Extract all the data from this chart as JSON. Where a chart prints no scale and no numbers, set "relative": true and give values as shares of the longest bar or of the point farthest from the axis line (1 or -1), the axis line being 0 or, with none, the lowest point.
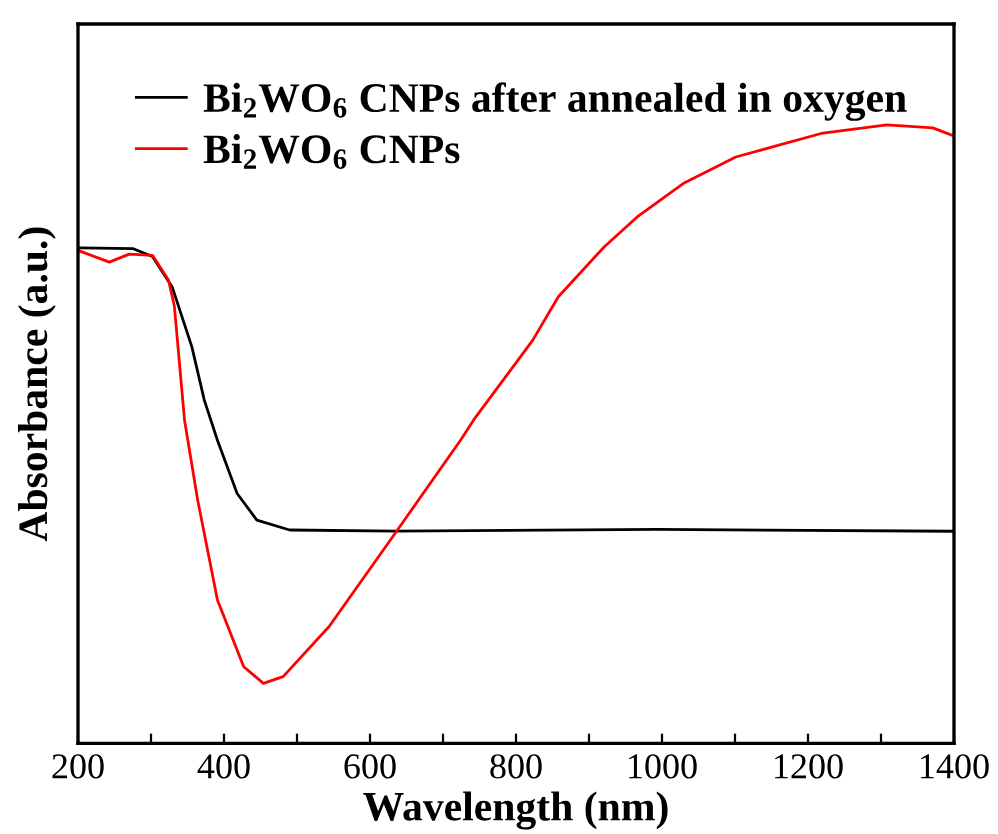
{
  "chart_data": {
    "type": "line",
    "relative": true,
    "xlabel": "Wavelength (nm)",
    "ylabel": "Absorbance (a.u.)",
    "xlim": [
      200,
      1400
    ],
    "xticks": [
      200,
      {
        "value": 300,
        "label": null
      },
      400,
      {
        "value": 500,
        "label": null
      },
      600,
      {
        "value": 700,
        "label": null
      },
      800,
      {
        "value": 900,
        "label": null
      },
      1000,
      {
        "value": 1100,
        "label": null
      },
      1200,
      {
        "value": 1300,
        "label": null
      },
      1400
    ],
    "legend": "top left",
    "grid": false,
    "tick_labels": "x",
    "line_style": "solid",
    "marker": "none",
    "series": [
      {
        "name": "Bi$_{2}$WO$_{6}$ CNPs after annealed in oxygen",
        "color": "#000000",
        "x": [
          203,
          275,
          302,
          329,
          356,
          373,
          391,
          418,
          445,
          490,
          634,
          993,
          1398
        ],
        "values": [
          0.801,
          0.8,
          0.787,
          0.738,
          0.641,
          0.555,
          0.49,
          0.404,
          0.361,
          0.345,
          0.343,
          0.346,
          0.343
        ]
      },
      {
        "name": "Bi$_{2}$WO$_{6}$ CNPs",
        "color": "#ff0000",
        "x": [
          200,
          243,
          270,
          302,
          324,
          332,
          346,
          364,
          391,
          427,
          454,
          481,
          544,
          634,
          724,
          742,
          823,
          858,
          921,
          966,
          1029,
          1101,
          1218,
          1308,
          1371,
          1398
        ],
        "values": [
          0.797,
          0.778,
          0.791,
          0.789,
          0.749,
          0.707,
          0.522,
          0.393,
          0.232,
          0.124,
          0.097,
          0.108,
          0.189,
          0.339,
          0.49,
          0.523,
          0.652,
          0.722,
          0.803,
          0.851,
          0.905,
          0.948,
          0.986,
          1.0,
          0.995,
          0.983
        ]
      }
    ]
  }
}
